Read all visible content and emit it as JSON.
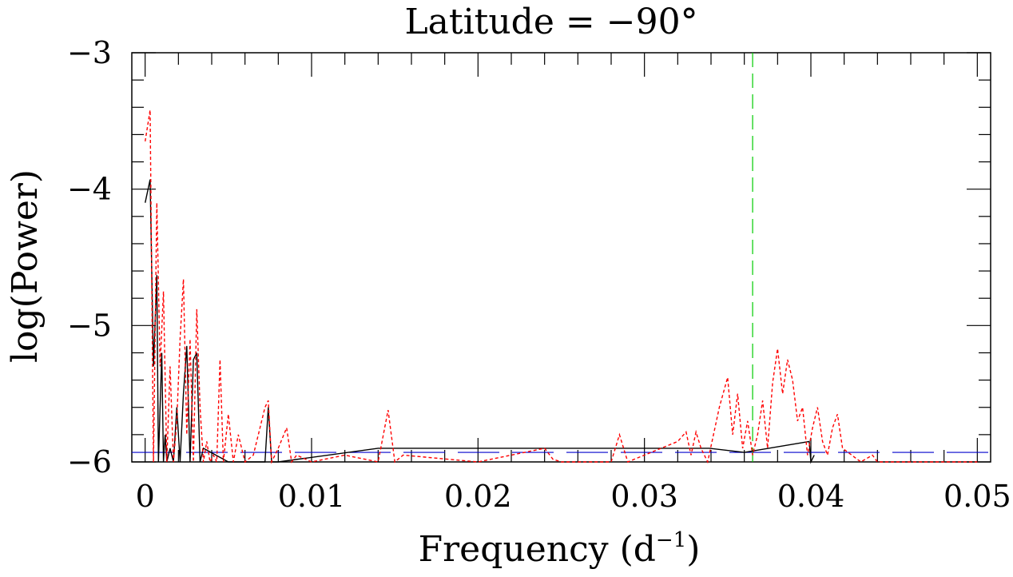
{
  "chart_data": {
    "type": "line",
    "title": "Latitude = −90°",
    "xlabel": "Frequency (d",
    "xlabel_sup": "−1",
    "xlabel_close": ")",
    "ylabel": "log(Power)",
    "xlim": [
      -0.0008,
      0.0508
    ],
    "ylim": [
      -6,
      -3
    ],
    "x_tick_labels": [
      "0",
      "0.01",
      "0.02",
      "0.03",
      "0.04",
      "0.05"
    ],
    "x_tick_values": [
      0,
      0.01,
      0.02,
      0.03,
      0.04,
      0.05
    ],
    "y_tick_labels": [
      "−3",
      "−4",
      "−5",
      "−6"
    ],
    "y_tick_values": [
      -3,
      -4,
      -5,
      -6
    ],
    "vline": {
      "x": 0.0365,
      "color": "#00cc00",
      "style": "dashed"
    },
    "hline": {
      "y": -5.93,
      "color": "#0000cc",
      "style": "dashed"
    },
    "series": [
      {
        "color": "#000000",
        "style": "solid",
        "x": [
          0.0,
          0.0003,
          0.0005,
          0.0007,
          0.0008,
          0.001,
          0.0011,
          0.0012,
          0.0013,
          0.0015,
          0.0017,
          0.0019,
          0.0021,
          0.0023,
          0.0025,
          0.0027,
          0.0029,
          0.0031,
          0.0033,
          0.0035,
          0.005,
          0.0072,
          0.0074,
          0.0076,
          0.008,
          0.014,
          0.0339,
          0.036,
          0.0399,
          0.04,
          0.0402
        ],
        "y": [
          -4.1,
          -3.93,
          -5.3,
          -4.63,
          -6.0,
          -5.2,
          -6.0,
          -5.8,
          -6.0,
          -5.9,
          -6.0,
          -5.6,
          -6.0,
          -5.5,
          -5.15,
          -6.0,
          -5.25,
          -5.2,
          -6.0,
          -5.9,
          -6.0,
          -6.0,
          -5.6,
          -6.0,
          -6.0,
          -5.9,
          -5.9,
          -5.93,
          -5.85,
          -6.0,
          -5.95
        ]
      },
      {
        "color": "#ff0000",
        "style": "dotted",
        "x": [
          0.0,
          0.0003,
          0.0005,
          0.0007,
          0.0009,
          0.0011,
          0.0013,
          0.0015,
          0.0017,
          0.0019,
          0.0021,
          0.0023,
          0.0025,
          0.0027,
          0.0029,
          0.0031,
          0.0033,
          0.0035,
          0.0037,
          0.0039,
          0.0041,
          0.0043,
          0.0045,
          0.0047,
          0.005,
          0.0053,
          0.0056,
          0.006,
          0.0065,
          0.0072,
          0.0074,
          0.0076,
          0.008,
          0.0085,
          0.0088,
          0.0091,
          0.01,
          0.012,
          0.014,
          0.0146,
          0.015,
          0.0155,
          0.02,
          0.024,
          0.0245,
          0.025,
          0.028,
          0.0285,
          0.029,
          0.032,
          0.0325,
          0.0328,
          0.0331,
          0.0334,
          0.0338,
          0.0345,
          0.035,
          0.0353,
          0.0356,
          0.0359,
          0.0362,
          0.0365,
          0.0368,
          0.0371,
          0.0374,
          0.0377,
          0.038,
          0.0383,
          0.0386,
          0.0389,
          0.0392,
          0.0395,
          0.0398,
          0.0401,
          0.0404,
          0.0407,
          0.041,
          0.0413,
          0.0416,
          0.0419,
          0.043,
          0.0437,
          0.044,
          0.046,
          0.05
        ],
        "y": [
          -3.65,
          -3.42,
          -6.0,
          -4.1,
          -5.3,
          -4.75,
          -6.0,
          -5.3,
          -6.0,
          -5.7,
          -5.1,
          -4.66,
          -5.8,
          -5.1,
          -6.0,
          -4.88,
          -5.6,
          -6.0,
          -5.85,
          -6.0,
          -5.95,
          -6.0,
          -5.25,
          -6.0,
          -5.65,
          -6.0,
          -5.8,
          -6.0,
          -5.95,
          -5.6,
          -5.55,
          -6.0,
          -5.9,
          -5.75,
          -6.0,
          -5.95,
          -6.0,
          -5.95,
          -6.0,
          -5.62,
          -6.0,
          -5.95,
          -6.0,
          -5.9,
          -5.98,
          -6.0,
          -6.0,
          -5.8,
          -6.0,
          -5.85,
          -5.78,
          -5.95,
          -5.78,
          -5.9,
          -6.0,
          -5.6,
          -5.38,
          -5.8,
          -5.5,
          -5.9,
          -5.7,
          -5.95,
          -5.8,
          -5.55,
          -5.9,
          -5.42,
          -5.17,
          -5.5,
          -5.25,
          -5.4,
          -5.7,
          -5.6,
          -5.95,
          -5.75,
          -5.6,
          -5.85,
          -5.95,
          -5.75,
          -5.65,
          -5.9,
          -6.0,
          -5.95,
          -6.0,
          -6.0,
          -6.0
        ]
      }
    ]
  }
}
